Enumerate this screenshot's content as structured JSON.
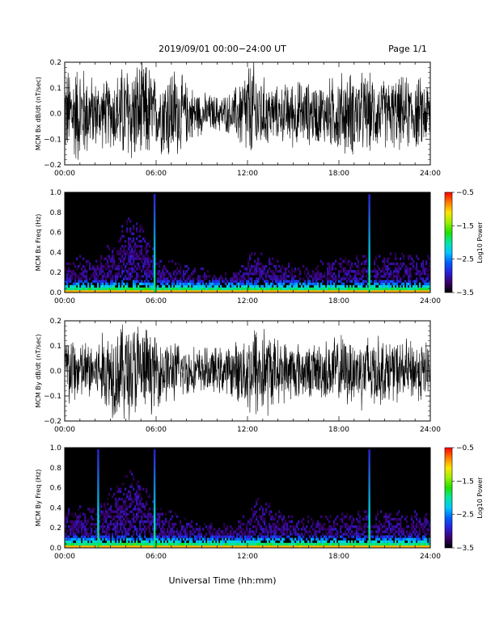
{
  "header": {
    "title": "2019/09/01   00:00−24:00 UT",
    "page": "Page 1/1"
  },
  "x_title": "Universal Time (hh:mm)",
  "colors": {
    "trace": "#000000",
    "spectro_bg": "#000000",
    "colormap": [
      "#000000",
      "#3a006b",
      "#2a1fd6",
      "#0060ff",
      "#00c8ff",
      "#00e8a0",
      "#22e000",
      "#9cf000",
      "#ffe400",
      "#ff7a00",
      "#ff0000"
    ]
  },
  "chart_data": [
    {
      "type": "line",
      "ylabel": "MCM Bx dB/dt (nT/sec)",
      "xlim_hours": [
        0,
        24
      ],
      "ylim": [
        -0.2,
        0.2
      ],
      "yticks": [
        "−0.2",
        "−0.1",
        "0.0",
        "0.1",
        "0.2"
      ],
      "xticks": [
        "00:00",
        "06:00",
        "12:00",
        "18:00",
        "24:00"
      ],
      "series": [
        {
          "hours": [
            0,
            1,
            2,
            3,
            4,
            4.5,
            5,
            5.5,
            6,
            7,
            8,
            9,
            10,
            11,
            12,
            12.5,
            13,
            14,
            15,
            16,
            17,
            18,
            19,
            20,
            21,
            22,
            23,
            24
          ],
          "amplitude": [
            0.17,
            0.2,
            0.13,
            0.13,
            0.2,
            0.2,
            0.2,
            0.2,
            0.13,
            0.2,
            0.12,
            0.08,
            0.07,
            0.08,
            0.2,
            0.2,
            0.14,
            0.1,
            0.13,
            0.12,
            0.12,
            0.16,
            0.16,
            0.15,
            0.13,
            0.14,
            0.14,
            0.13
          ]
        }
      ]
    },
    {
      "type": "heatmap",
      "ylabel": "MCM Bx Freq (Hz)",
      "xlim_hours": [
        0,
        24
      ],
      "ylim": [
        0.0,
        1.0
      ],
      "yticks": [
        "0.0",
        "0.2",
        "0.4",
        "0.6",
        "0.8",
        "1.0"
      ],
      "xticks": [
        "00:00",
        "06:00",
        "12:00",
        "18:00",
        "24:00"
      ],
      "colorbar": {
        "label": "Log10 Power",
        "ticks": [
          "−0.5",
          "−1.5",
          "−2.5",
          "−3.5"
        ],
        "range": [
          -3.5,
          -0.5
        ]
      },
      "activity": {
        "hours": [
          0,
          1,
          2,
          3,
          4,
          4.5,
          5,
          5.5,
          6,
          7,
          8,
          9,
          10,
          11,
          12,
          12.5,
          13,
          14,
          15,
          16,
          17,
          18,
          19,
          20,
          21,
          22,
          23,
          24
        ],
        "top_freq": [
          0.25,
          0.3,
          0.28,
          0.4,
          0.55,
          0.65,
          0.6,
          0.45,
          0.3,
          0.25,
          0.25,
          0.2,
          0.15,
          0.15,
          0.3,
          0.35,
          0.35,
          0.25,
          0.25,
          0.2,
          0.25,
          0.3,
          0.3,
          0.3,
          0.3,
          0.35,
          0.3,
          0.3
        ]
      },
      "spikes_hours": [
        5.9,
        20.0
      ]
    },
    {
      "type": "line",
      "ylabel": "MCM By dB/dt (nT/sec)",
      "xlim_hours": [
        0,
        24
      ],
      "ylim": [
        -0.2,
        0.2
      ],
      "yticks": [
        "−0.2",
        "−0.1",
        "0.0",
        "0.1",
        "0.2"
      ],
      "xticks": [
        "00:00",
        "06:00",
        "12:00",
        "18:00",
        "24:00"
      ],
      "series": [
        {
          "hours": [
            0,
            1,
            2,
            3,
            4,
            4.5,
            5,
            5.5,
            6,
            7,
            8,
            9,
            10,
            11,
            12,
            12.5,
            13,
            14,
            15,
            16,
            17,
            18,
            19,
            20,
            21,
            22,
            23,
            24
          ],
          "amplitude": [
            0.16,
            0.12,
            0.12,
            0.18,
            0.2,
            0.2,
            0.2,
            0.16,
            0.14,
            0.12,
            0.1,
            0.09,
            0.09,
            0.1,
            0.16,
            0.2,
            0.2,
            0.12,
            0.12,
            0.1,
            0.12,
            0.14,
            0.13,
            0.16,
            0.12,
            0.12,
            0.12,
            0.12
          ]
        }
      ]
    },
    {
      "type": "heatmap",
      "ylabel": "MCM By Freq (Hz)",
      "xlim_hours": [
        0,
        24
      ],
      "ylim": [
        0.0,
        1.0
      ],
      "yticks": [
        "0.0",
        "0.2",
        "0.4",
        "0.6",
        "0.8",
        "1.0"
      ],
      "xticks": [
        "00:00",
        "06:00",
        "12:00",
        "18:00",
        "24:00"
      ],
      "colorbar": {
        "label": "Log10 Power",
        "ticks": [
          "−0.5",
          "−1.5",
          "−2.5",
          "−3.5"
        ],
        "range": [
          -3.5,
          -0.5
        ]
      },
      "activity": {
        "hours": [
          0,
          1,
          2,
          3,
          4,
          4.5,
          5,
          5.5,
          6,
          7,
          8,
          9,
          10,
          11,
          12,
          12.5,
          13,
          14,
          15,
          16,
          17,
          18,
          19,
          20,
          21,
          22,
          23,
          24
        ],
        "top_freq": [
          0.3,
          0.35,
          0.35,
          0.45,
          0.6,
          0.65,
          0.6,
          0.45,
          0.35,
          0.3,
          0.25,
          0.2,
          0.2,
          0.2,
          0.3,
          0.4,
          0.4,
          0.3,
          0.25,
          0.25,
          0.25,
          0.3,
          0.3,
          0.3,
          0.3,
          0.3,
          0.3,
          0.3
        ]
      },
      "spikes_hours": [
        2.2,
        5.9,
        20.0
      ]
    }
  ]
}
